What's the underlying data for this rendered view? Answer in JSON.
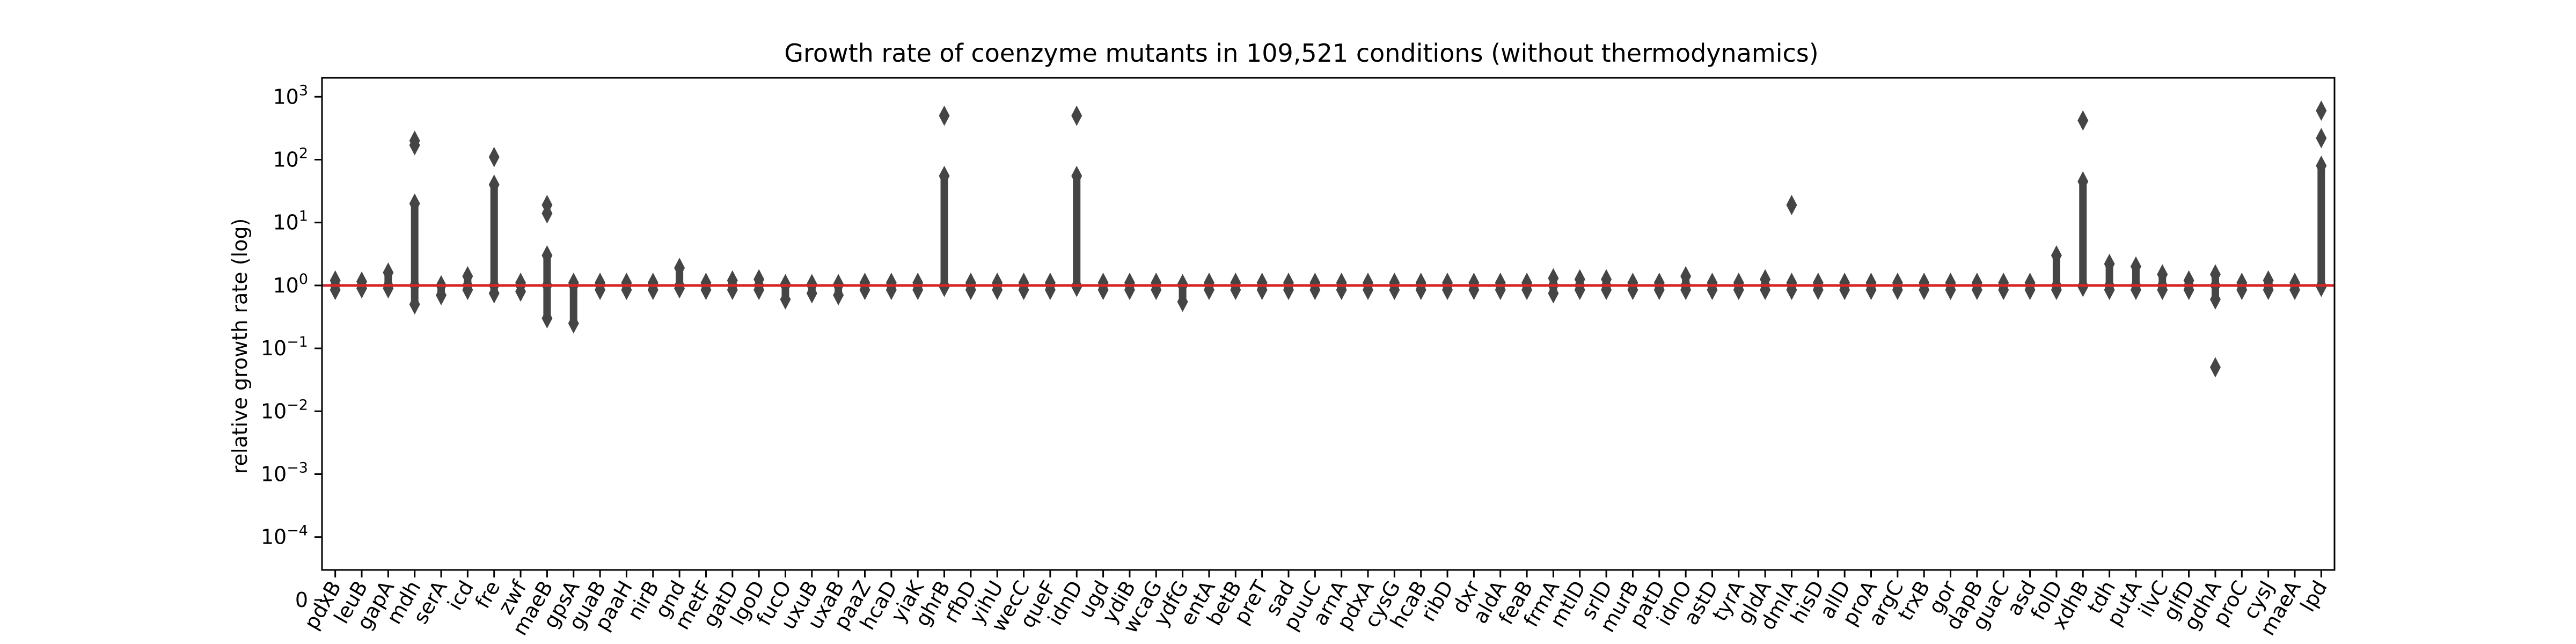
{
  "chart_data": {
    "type": "strip",
    "title": "Growth rate of coenzyme mutants in 109,521 conditions (without thermodynamics)",
    "xlabel": "",
    "ylabel": "relative growth rate (log)",
    "yscale": "log",
    "ylim": [
      3e-05,
      2000
    ],
    "y_ticks": [
      {
        "value": 1e-05,
        "base": "0",
        "exp": ""
      },
      {
        "value": 0.0001,
        "base": "10",
        "exp": "−4"
      },
      {
        "value": 0.001,
        "base": "10",
        "exp": "−3"
      },
      {
        "value": 0.01,
        "base": "10",
        "exp": "−2"
      },
      {
        "value": 0.1,
        "base": "10",
        "exp": "−1"
      },
      {
        "value": 1,
        "base": "10",
        "exp": "0"
      },
      {
        "value": 10,
        "base": "10",
        "exp": "1"
      },
      {
        "value": 100,
        "base": "10",
        "exp": "2"
      },
      {
        "value": 1000,
        "base": "10",
        "exp": "3"
      }
    ],
    "reference_line": {
      "y": 1,
      "color": "#d62728"
    },
    "marker_color": "#454545",
    "categories": [
      "pdxB",
      "leuB",
      "gapA",
      "mdh",
      "serA",
      "icd",
      "fre",
      "zwf",
      "maeB",
      "gpsA",
      "guaB",
      "paaH",
      "nirB",
      "gnd",
      "metF",
      "gatD",
      "lgoD",
      "fucO",
      "uxuB",
      "uxaB",
      "paaZ",
      "hcaD",
      "yiaK",
      "ghrB",
      "rfbD",
      "yihU",
      "wecC",
      "queF",
      "idnD",
      "ugd",
      "ydiB",
      "wcaG",
      "ydfG",
      "entA",
      "betB",
      "preT",
      "sad",
      "puuC",
      "arnA",
      "pdxA",
      "cysG",
      "hcaB",
      "ribD",
      "dxr",
      "aldA",
      "feaB",
      "frmA",
      "mtlD",
      "srlD",
      "murB",
      "patD",
      "idnO",
      "astD",
      "tyrA",
      "gldA",
      "dmlA",
      "hisD",
      "allD",
      "proA",
      "argC",
      "trxB",
      "gor",
      "dapB",
      "guaC",
      "asd",
      "folD",
      "xdhB",
      "tdh",
      "putA",
      "ilvC",
      "glfD",
      "gdhA",
      "proC",
      "cysJ",
      "maeA",
      "lpd"
    ],
    "series": [
      {
        "values": [
          {
            "min": 0.85,
            "max": 1.2
          },
          {
            "min": 0.9,
            "max": 1.15
          },
          {
            "min": 0.9,
            "max": 1.6
          },
          {
            "min": 0.5,
            "max": 20,
            "outliers": [
              170,
              200
            ]
          },
          {
            "min": 0.7,
            "max": 1.0
          },
          {
            "min": 0.85,
            "max": 1.4
          },
          {
            "min": 0.75,
            "max": 40,
            "outliers": [
              110
            ]
          },
          {
            "min": 0.8,
            "max": 1.1
          },
          {
            "min": 0.3,
            "max": 3.0,
            "outliers": [
              14,
              19
            ]
          },
          {
            "min": 0.25,
            "max": 1.1
          },
          {
            "min": 0.85,
            "max": 1.1
          },
          {
            "min": 0.85,
            "max": 1.1
          },
          {
            "min": 0.85,
            "max": 1.1
          },
          {
            "min": 0.9,
            "max": 1.9
          },
          {
            "min": 0.85,
            "max": 1.1
          },
          {
            "min": 0.85,
            "max": 1.2
          },
          {
            "min": 0.85,
            "max": 1.25
          },
          {
            "min": 0.6,
            "max": 1.05
          },
          {
            "min": 0.75,
            "max": 1.05
          },
          {
            "min": 0.7,
            "max": 1.05
          },
          {
            "min": 0.85,
            "max": 1.1
          },
          {
            "min": 0.85,
            "max": 1.1
          },
          {
            "min": 0.85,
            "max": 1.1
          },
          {
            "min": 0.95,
            "max": 55,
            "outliers": [
              500
            ]
          },
          {
            "min": 0.85,
            "max": 1.1
          },
          {
            "min": 0.85,
            "max": 1.1
          },
          {
            "min": 0.85,
            "max": 1.1
          },
          {
            "min": 0.85,
            "max": 1.1
          },
          {
            "min": 0.95,
            "max": 55,
            "outliers": [
              500
            ]
          },
          {
            "min": 0.85,
            "max": 1.1
          },
          {
            "min": 0.85,
            "max": 1.1
          },
          {
            "min": 0.85,
            "max": 1.1
          },
          {
            "min": 0.55,
            "max": 1.05
          },
          {
            "min": 0.85,
            "max": 1.1
          },
          {
            "min": 0.85,
            "max": 1.1
          },
          {
            "min": 0.85,
            "max": 1.1
          },
          {
            "min": 0.85,
            "max": 1.1
          },
          {
            "min": 0.85,
            "max": 1.1
          },
          {
            "min": 0.85,
            "max": 1.1
          },
          {
            "min": 0.85,
            "max": 1.1
          },
          {
            "min": 0.85,
            "max": 1.1
          },
          {
            "min": 0.85,
            "max": 1.1
          },
          {
            "min": 0.85,
            "max": 1.1
          },
          {
            "min": 0.85,
            "max": 1.1
          },
          {
            "min": 0.85,
            "max": 1.1
          },
          {
            "min": 0.85,
            "max": 1.1
          },
          {
            "min": 0.75,
            "max": 1.3
          },
          {
            "min": 0.85,
            "max": 1.25
          },
          {
            "min": 0.85,
            "max": 1.25
          },
          {
            "min": 0.85,
            "max": 1.1
          },
          {
            "min": 0.85,
            "max": 1.1
          },
          {
            "min": 0.85,
            "max": 1.4
          },
          {
            "min": 0.85,
            "max": 1.1
          },
          {
            "min": 0.85,
            "max": 1.1
          },
          {
            "min": 0.85,
            "max": 1.25
          },
          {
            "min": 0.85,
            "max": 1.1,
            "outliers": [
              19
            ]
          },
          {
            "min": 0.85,
            "max": 1.1
          },
          {
            "min": 0.85,
            "max": 1.1
          },
          {
            "min": 0.85,
            "max": 1.1
          },
          {
            "min": 0.85,
            "max": 1.1
          },
          {
            "min": 0.85,
            "max": 1.1
          },
          {
            "min": 0.85,
            "max": 1.1
          },
          {
            "min": 0.85,
            "max": 1.1
          },
          {
            "min": 0.85,
            "max": 1.1
          },
          {
            "min": 0.85,
            "max": 1.1
          },
          {
            "min": 0.85,
            "max": 3.0
          },
          {
            "min": 0.95,
            "max": 45,
            "outliers": [
              420
            ]
          },
          {
            "min": 0.85,
            "max": 2.2
          },
          {
            "min": 0.85,
            "max": 2.0
          },
          {
            "min": 0.85,
            "max": 1.5
          },
          {
            "min": 0.85,
            "max": 1.2
          },
          {
            "min": 0.6,
            "max": 1.5,
            "outliers": [
              0.05
            ]
          },
          {
            "min": 0.85,
            "max": 1.1
          },
          {
            "min": 0.85,
            "max": 1.2
          },
          {
            "min": 0.85,
            "max": 1.1
          },
          {
            "min": 0.95,
            "max": 80,
            "outliers": [
              220,
              600
            ]
          }
        ]
      }
    ],
    "grid": false,
    "legend": "none"
  }
}
